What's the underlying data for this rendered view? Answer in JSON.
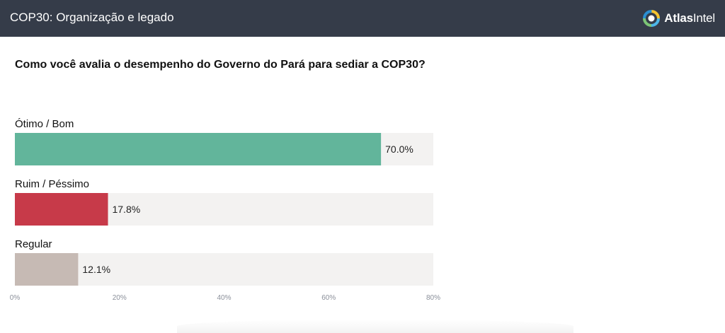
{
  "header": {
    "title": "COP30: Organização e legado",
    "brand_prefix": "Atlas",
    "brand_suffix": "Intel",
    "background": "#353c49"
  },
  "question": "Como você avalia o desempenho do Governo do Pará para sediar a COP30?",
  "chart_data": {
    "type": "bar",
    "orientation": "horizontal",
    "categories": [
      "Ótimo / Bom",
      "Ruim / Péssimo",
      "Regular"
    ],
    "values": [
      70.0,
      17.8,
      12.1
    ],
    "value_labels": [
      "70.0%",
      "17.8%",
      "12.1%"
    ],
    "colors": [
      "#62b59b",
      "#c73a49",
      "#c6bab4"
    ],
    "track_color": "#f3f2f1",
    "xlim": [
      0,
      80
    ],
    "xticks": [
      "0%",
      "20%",
      "40%",
      "60%",
      "80%"
    ],
    "grid": false
  }
}
